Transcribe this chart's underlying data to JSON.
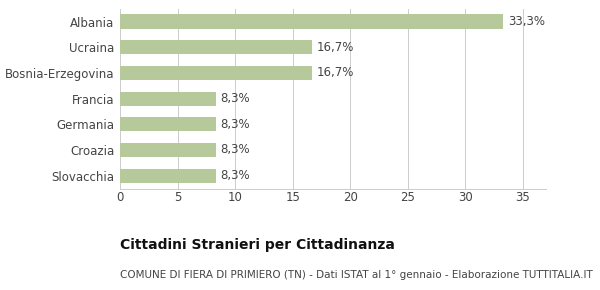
{
  "categories": [
    "Albania",
    "Ucraina",
    "Bosnia-Erzegovina",
    "Francia",
    "Germania",
    "Croazia",
    "Slovacchia"
  ],
  "values": [
    33.3,
    16.7,
    16.7,
    8.3,
    8.3,
    8.3,
    8.3
  ],
  "labels": [
    "33,3%",
    "16,7%",
    "16,7%",
    "8,3%",
    "8,3%",
    "8,3%",
    "8,3%"
  ],
  "bar_color": "#b5c99a",
  "xlim": [
    0,
    37
  ],
  "xticks": [
    0,
    5,
    10,
    15,
    20,
    25,
    30,
    35
  ],
  "title": "Cittadini Stranieri per Cittadinanza",
  "subtitle": "COMUNE DI FIERA DI PRIMIERO (TN) - Dati ISTAT al 1° gennaio - Elaborazione TUTTITALIA.IT",
  "title_fontsize": 10,
  "subtitle_fontsize": 7.5,
  "tick_fontsize": 8.5,
  "label_fontsize": 8.5,
  "background_color": "#ffffff",
  "grid_color": "#cccccc",
  "bar_height": 0.55
}
